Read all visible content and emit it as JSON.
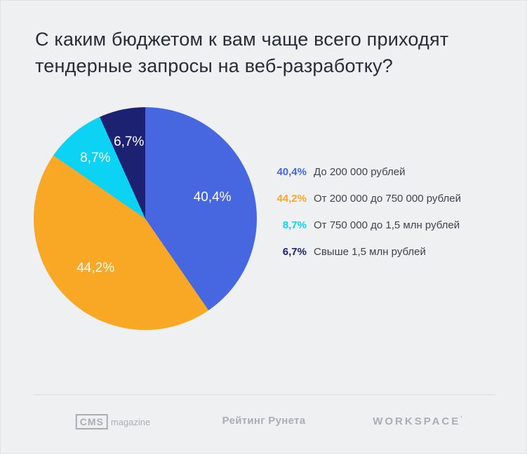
{
  "title": "С каким бюджетом к вам чаще всего приходят тендерные запросы на веб-разработку?",
  "chart_data": {
    "type": "pie",
    "title": "С каким бюджетом к вам чаще всего приходят тендерные запросы на веб-разработку?",
    "labels": [
      "До 200 000 рублей",
      "От 200 000 до 750 000 рублей",
      "От 750 000 до 1,5 млн рублей",
      "Свыше 1,5 млн рублей"
    ],
    "values": [
      40.4,
      44.2,
      8.7,
      6.7
    ],
    "display_values": [
      "40,4%",
      "44,2%",
      "8,7%",
      "6,7%"
    ],
    "colors": [
      "#4667df",
      "#f9a825",
      "#0cd2f4",
      "#1c2271"
    ],
    "start_angle_deg": 0,
    "direction": "clockwise",
    "legend_position": "right"
  },
  "colors": {
    "background": "#eef0f2",
    "title_text": "#272c36",
    "legend_label_text": "#3f444c",
    "footer_gray": "#a9aeb6",
    "divider": "#dcdee2"
  },
  "footer": {
    "cms_logo_primary": "CMS",
    "cms_logo_secondary": "magazine",
    "rating_runet_logo": "Рейтинг Рунета",
    "workspace_logo": "WORKSPACE",
    "workspace_mark": "’"
  }
}
